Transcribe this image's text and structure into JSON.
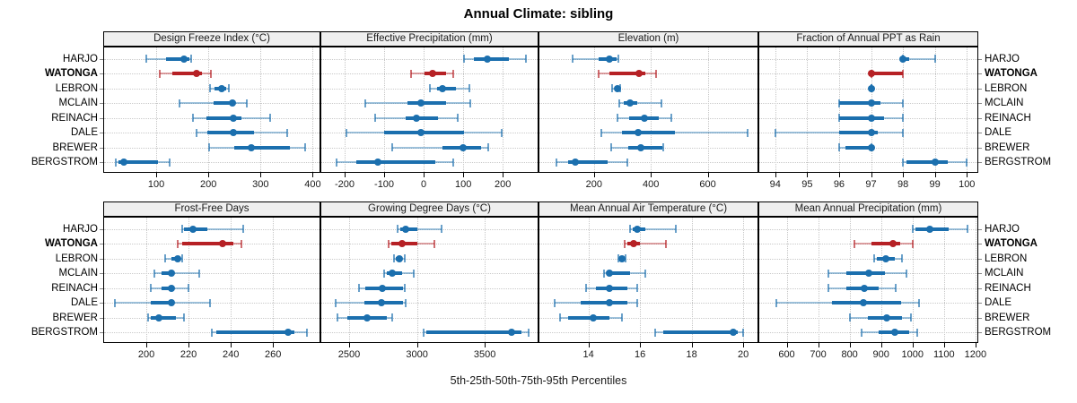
{
  "title": "Annual Climate: sibling",
  "caption": "5th-25th-50th-75th-95th Percentiles",
  "stations": [
    "HARJO",
    "WATONGA",
    "LEBRON",
    "MCLAIN",
    "REINACH",
    "DALE",
    "BREWER",
    "BERGSTROM"
  ],
  "highlight_station": "WATONGA",
  "colors": {
    "normal": "#1b6fae",
    "highlight": "#b62125",
    "strip_bg": "#efefef",
    "grid": "#c9c9c9",
    "panel_border": "#000000"
  },
  "percentiles": [
    "5th",
    "25th",
    "50th",
    "75th",
    "95th"
  ],
  "chart_data": [
    {
      "type": "scatter",
      "subtype": "percentile-interval",
      "grid": {
        "row": 0,
        "col": 0
      },
      "title": "Design Freeze Index (°C)",
      "xlim": [
        0,
        413
      ],
      "xticks": [
        100,
        200,
        300,
        400
      ],
      "series": [
        {
          "name": "HARJO",
          "values": [
            81,
            118,
            154,
            163,
            167
          ]
        },
        {
          "name": "WATONGA",
          "values": [
            106,
            130,
            178,
            188,
            204
          ]
        },
        {
          "name": "LEBRON",
          "values": [
            203,
            212,
            226,
            234,
            239
          ]
        },
        {
          "name": "MCLAIN",
          "values": [
            145,
            210,
            246,
            250,
            274
          ]
        },
        {
          "name": "REINACH",
          "values": [
            170,
            196,
            247,
            263,
            318
          ]
        },
        {
          "name": "DALE",
          "values": [
            177,
            198,
            247,
            288,
            351
          ]
        },
        {
          "name": "BREWER",
          "values": [
            201,
            249,
            282,
            357,
            386
          ]
        },
        {
          "name": "BERGSTROM",
          "values": [
            22,
            28,
            38,
            103,
            125
          ]
        }
      ]
    },
    {
      "type": "scatter",
      "subtype": "percentile-interval",
      "grid": {
        "row": 0,
        "col": 1
      },
      "title": "Effective Precipitation (mm)",
      "xlim": [
        -259,
        288
      ],
      "xticks": [
        -200,
        -100,
        0,
        100,
        200
      ],
      "series": [
        {
          "name": "HARJO",
          "values": [
            103,
            126,
            162,
            216,
            259
          ]
        },
        {
          "name": "WATONGA",
          "values": [
            -31,
            3,
            22,
            57,
            75
          ]
        },
        {
          "name": "LEBRON",
          "values": [
            16,
            34,
            48,
            82,
            116
          ]
        },
        {
          "name": "MCLAIN",
          "values": [
            -148,
            -41,
            -6,
            56,
            118
          ]
        },
        {
          "name": "REINACH",
          "values": [
            -123,
            -45,
            -19,
            37,
            86
          ]
        },
        {
          "name": "DALE",
          "values": [
            -196,
            -101,
            -8,
            101,
            198
          ]
        },
        {
          "name": "BREWER",
          "values": [
            -80,
            48,
            99,
            146,
            164
          ]
        },
        {
          "name": "BERGSTROM",
          "values": [
            -221,
            -170,
            -115,
            30,
            75
          ]
        }
      ]
    },
    {
      "type": "scatter",
      "subtype": "percentile-interval",
      "grid": {
        "row": 0,
        "col": 2
      },
      "title": "Elevation (m)",
      "xlim": [
        8,
        775
      ],
      "xticks": [
        200,
        400,
        600
      ],
      "series": [
        {
          "name": "HARJO",
          "values": [
            125,
            215,
            255,
            280,
            287
          ]
        },
        {
          "name": "WATONGA",
          "values": [
            217,
            253,
            358,
            382,
            419
          ]
        },
        {
          "name": "LEBRON",
          "values": [
            265,
            272,
            282,
            288,
            291
          ]
        },
        {
          "name": "MCLAIN",
          "values": [
            289,
            305,
            326,
            352,
            436
          ]
        },
        {
          "name": "REINACH",
          "values": [
            284,
            324,
            378,
            428,
            472
          ]
        },
        {
          "name": "DALE",
          "values": [
            227,
            299,
            356,
            486,
            739
          ]
        },
        {
          "name": "BREWER",
          "values": [
            261,
            319,
            364,
            439,
            444
          ]
        },
        {
          "name": "BERGSTROM",
          "values": [
            69,
            108,
            134,
            248,
            316
          ]
        }
      ]
    },
    {
      "type": "scatter",
      "subtype": "percentile-interval",
      "grid": {
        "row": 0,
        "col": 3
      },
      "title": "Fraction of Annual PPT as Rain",
      "xlim": [
        93.5,
        100.33
      ],
      "xticks": [
        94,
        95,
        96,
        97,
        98,
        99,
        100
      ],
      "series": [
        {
          "name": "HARJO",
          "values": [
            98,
            98,
            98,
            98.2,
            99
          ]
        },
        {
          "name": "WATONGA",
          "values": [
            97,
            97,
            97,
            98,
            98
          ]
        },
        {
          "name": "LEBRON",
          "values": [
            97,
            97,
            97,
            97,
            97
          ]
        },
        {
          "name": "MCLAIN",
          "values": [
            96,
            96,
            97,
            97.3,
            98
          ]
        },
        {
          "name": "REINACH",
          "values": [
            96,
            96,
            97,
            97.4,
            98
          ]
        },
        {
          "name": "DALE",
          "values": [
            94,
            96,
            97,
            97.2,
            98
          ]
        },
        {
          "name": "BREWER",
          "values": [
            96,
            96.2,
            97,
            97,
            97
          ]
        },
        {
          "name": "BERGSTROM",
          "values": [
            98,
            98.1,
            99,
            99.4,
            100
          ]
        }
      ]
    },
    {
      "type": "scatter",
      "subtype": "percentile-interval",
      "grid": {
        "row": 1,
        "col": 0
      },
      "title": "Frost-Free Days",
      "xlim": [
        180,
        282
      ],
      "xticks": [
        200,
        220,
        240,
        260
      ],
      "series": [
        {
          "name": "HARJO",
          "values": [
            217,
            218,
            222,
            229,
            246
          ]
        },
        {
          "name": "WATONGA",
          "values": [
            215,
            217,
            236,
            241,
            245
          ]
        },
        {
          "name": "LEBRON",
          "values": [
            209,
            212,
            215,
            216,
            217
          ]
        },
        {
          "name": "MCLAIN",
          "values": [
            204,
            207,
            212,
            213,
            225
          ]
        },
        {
          "name": "REINACH",
          "values": [
            202,
            207,
            212,
            213,
            220
          ]
        },
        {
          "name": "DALE",
          "values": [
            185,
            202,
            212,
            213,
            230
          ]
        },
        {
          "name": "BREWER",
          "values": [
            201,
            202,
            206,
            214,
            218
          ]
        },
        {
          "name": "BERGSTROM",
          "values": [
            231,
            233,
            267,
            270,
            276
          ]
        }
      ]
    },
    {
      "type": "scatter",
      "subtype": "percentile-interval",
      "grid": {
        "row": 1,
        "col": 1
      },
      "title": "Growing Degree Days (°C)",
      "xlim": [
        2295,
        3889
      ],
      "xticks": [
        2500,
        3000,
        3500
      ],
      "series": [
        {
          "name": "HARJO",
          "values": [
            2860,
            2875,
            2920,
            3005,
            3180
          ]
        },
        {
          "name": "WATONGA",
          "values": [
            2790,
            2810,
            2890,
            3000,
            3130
          ]
        },
        {
          "name": "LEBRON",
          "values": [
            2830,
            2845,
            2868,
            2885,
            2910
          ]
        },
        {
          "name": "MCLAIN",
          "values": [
            2760,
            2780,
            2820,
            2890,
            2975
          ]
        },
        {
          "name": "REINACH",
          "values": [
            2575,
            2620,
            2745,
            2895,
            2910
          ]
        },
        {
          "name": "DALE",
          "values": [
            2400,
            2610,
            2740,
            2900,
            2915
          ]
        },
        {
          "name": "BREWER",
          "values": [
            2415,
            2490,
            2630,
            2775,
            2815
          ]
        },
        {
          "name": "BERGSTROM",
          "values": [
            3050,
            3070,
            3695,
            3770,
            3825
          ]
        }
      ]
    },
    {
      "type": "scatter",
      "subtype": "percentile-interval",
      "grid": {
        "row": 1,
        "col": 2
      },
      "title": "Mean Annual Air Temperature (°C)",
      "xlim": [
        12.1,
        20.55
      ],
      "xticks": [
        14,
        16,
        18,
        20
      ],
      "series": [
        {
          "name": "HARJO",
          "values": [
            15.6,
            15.7,
            15.9,
            16.2,
            17.4
          ]
        },
        {
          "name": "WATONGA",
          "values": [
            15.4,
            15.5,
            15.75,
            16.0,
            17.0
          ]
        },
        {
          "name": "LEBRON",
          "values": [
            15.15,
            15.2,
            15.3,
            15.35,
            15.45
          ]
        },
        {
          "name": "MCLAIN",
          "values": [
            14.6,
            14.7,
            14.8,
            15.6,
            16.2
          ]
        },
        {
          "name": "REINACH",
          "values": [
            13.9,
            14.3,
            14.8,
            15.5,
            15.9
          ]
        },
        {
          "name": "DALE",
          "values": [
            12.7,
            13.7,
            14.8,
            15.5,
            15.9
          ]
        },
        {
          "name": "BREWER",
          "values": [
            12.9,
            13.2,
            14.2,
            14.8,
            15.3
          ]
        },
        {
          "name": "BERGSTROM",
          "values": [
            16.6,
            16.9,
            19.6,
            19.8,
            20.0
          ]
        }
      ]
    },
    {
      "type": "scatter",
      "subtype": "percentile-interval",
      "grid": {
        "row": 1,
        "col": 3
      },
      "title": "Mean Annual Precipitation (mm)",
      "xlim": [
        513,
        1206
      ],
      "xticks": [
        600,
        700,
        800,
        900,
        1000,
        1100,
        1200
      ],
      "series": [
        {
          "name": "HARJO",
          "values": [
            1000,
            1010,
            1055,
            1115,
            1175
          ]
        },
        {
          "name": "WATONGA",
          "values": [
            815,
            870,
            937,
            960,
            1000
          ]
        },
        {
          "name": "LEBRON",
          "values": [
            877,
            888,
            914,
            944,
            967
          ]
        },
        {
          "name": "MCLAIN",
          "values": [
            733,
            789,
            861,
            911,
            981
          ]
        },
        {
          "name": "REINACH",
          "values": [
            733,
            789,
            847,
            892,
            946
          ]
        },
        {
          "name": "DALE",
          "values": [
            567,
            744,
            845,
            963,
            1022
          ]
        },
        {
          "name": "BREWER",
          "values": [
            800,
            858,
            919,
            967,
            996
          ]
        },
        {
          "name": "BERGSTROM",
          "values": [
            838,
            893,
            943,
            988,
            1015
          ]
        }
      ]
    }
  ]
}
